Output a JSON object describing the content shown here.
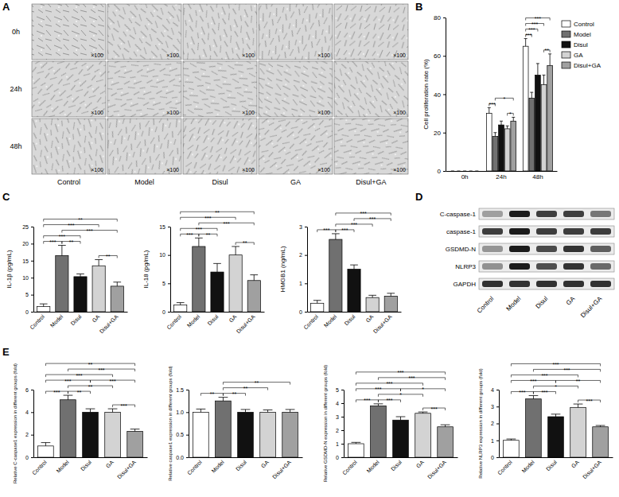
{
  "panel_labels": [
    "A",
    "B",
    "C",
    "D",
    "E"
  ],
  "cell_images": {
    "rows": [
      "0h",
      "24h",
      "48h"
    ],
    "columns": [
      "Control",
      "Model",
      "Disul",
      "GA",
      "Disul+GA"
    ],
    "magnification": "×100"
  },
  "western_blot": {
    "proteins": [
      "C-caspase-1",
      "caspase-1",
      "GSDMD-N",
      "NLRP3",
      "GAPDH"
    ],
    "lanes": [
      "Control",
      "Model",
      "Disul",
      "GA",
      "Disul+GA"
    ]
  },
  "chart_data": [
    {
      "type": "bar",
      "ylabel": "Cell proliferation rate (%)",
      "categories": [
        "0h",
        "24h",
        "48h"
      ],
      "series": [
        {
          "name": "Control",
          "color": "#ffffff",
          "values": [
            0,
            30,
            65
          ],
          "errors": [
            0,
            3,
            4
          ]
        },
        {
          "name": "Model",
          "color": "#707070",
          "values": [
            0,
            18,
            38
          ],
          "errors": [
            0,
            2,
            3
          ]
        },
        {
          "name": "Disul",
          "color": "#111111",
          "values": [
            0,
            24,
            50
          ],
          "errors": [
            0,
            2,
            6
          ]
        },
        {
          "name": "GA",
          "color": "#d3d3d3",
          "values": [
            0,
            22,
            45
          ],
          "errors": [
            0,
            1.5,
            5
          ]
        },
        {
          "name": "Disul+GA",
          "color": "#a0a0a0",
          "values": [
            0,
            26,
            55
          ],
          "errors": [
            0,
            2,
            6
          ]
        }
      ],
      "ylim": [
        0,
        80
      ],
      "yticks": [
        0,
        20,
        40,
        60,
        80
      ],
      "legend": "right",
      "annotations": [
        {
          "text": "***",
          "at": "24h",
          "between": [
            "Control",
            "Model"
          ]
        },
        {
          "text": "*",
          "at": "24h",
          "between": [
            "GA",
            "Disul+GA"
          ]
        },
        {
          "text": "*",
          "at": "24h",
          "between": [
            "Model",
            "Disul+GA"
          ]
        },
        {
          "text": "***",
          "at": "48h",
          "between": [
            "Control",
            "Model"
          ]
        },
        {
          "text": "**",
          "at": "48h",
          "between": [
            "GA",
            "Disul+GA"
          ]
        },
        {
          "text": "***",
          "at": "48h",
          "between": [
            "Control",
            "Disul"
          ]
        },
        {
          "text": "***",
          "at": "48h",
          "between": [
            "Control",
            "GA"
          ]
        },
        {
          "text": "***",
          "at": "48h",
          "between": [
            "Control",
            "Disul+GA"
          ]
        }
      ]
    },
    {
      "type": "bar",
      "ylabel": "IL-1β (pg/mL)",
      "categories": [
        "Control",
        "Model",
        "Disul",
        "GA",
        "Disul+GA"
      ],
      "values": [
        1.5,
        16.5,
        10.3,
        13.5,
        7.5
      ],
      "errors": [
        0.8,
        3,
        0.8,
        1.8,
        1.2
      ],
      "colors": [
        "#ffffff",
        "#707070",
        "#111111",
        "#d3d3d3",
        "#a0a0a0"
      ],
      "ylim": [
        0,
        25
      ],
      "yticks": [
        0,
        5,
        10,
        15,
        20,
        25
      ],
      "annotations": [
        {
          "text": "***",
          "between": [
            "Control",
            "Model"
          ]
        },
        {
          "text": "**",
          "between": [
            "Model",
            "Disul"
          ]
        },
        {
          "text": "**",
          "between": [
            "GA",
            "Disul+GA"
          ]
        },
        {
          "text": "***",
          "between": [
            "Control",
            "Disul"
          ]
        },
        {
          "text": "***",
          "between": [
            "Model",
            "Disul+GA"
          ]
        },
        {
          "text": "***",
          "between": [
            "Control",
            "GA"
          ]
        },
        {
          "text": "**",
          "between": [
            "Control",
            "Disul+GA"
          ]
        }
      ]
    },
    {
      "type": "bar",
      "ylabel": "IL-18 (pg/mL)",
      "categories": [
        "Control",
        "Model",
        "Disul",
        "GA",
        "Disul+GA"
      ],
      "values": [
        1.2,
        11.5,
        7,
        10,
        5.5
      ],
      "errors": [
        0.4,
        1.5,
        1.5,
        1.5,
        1
      ],
      "colors": [
        "#ffffff",
        "#707070",
        "#111111",
        "#d3d3d3",
        "#a0a0a0"
      ],
      "ylim": [
        0,
        15
      ],
      "yticks": [
        0,
        5,
        10,
        15
      ],
      "annotations": [
        {
          "text": "***",
          "between": [
            "Control",
            "Model"
          ]
        },
        {
          "text": "**",
          "between": [
            "Model",
            "Disul"
          ]
        },
        {
          "text": "**",
          "between": [
            "GA",
            "Disul+GA"
          ]
        },
        {
          "text": "***",
          "between": [
            "Control",
            "Disul"
          ]
        },
        {
          "text": "***",
          "between": [
            "Model",
            "Disul+GA"
          ]
        },
        {
          "text": "***",
          "between": [
            "Control",
            "GA"
          ]
        },
        {
          "text": "**",
          "between": [
            "Control",
            "Disul+GA"
          ]
        }
      ]
    },
    {
      "type": "bar",
      "ylabel": "HMGB1 (ng/mL)",
      "categories": [
        "Control",
        "Model",
        "Disul",
        "GA",
        "Disul+GA"
      ],
      "values": [
        0.3,
        2.55,
        1.5,
        0.5,
        0.55
      ],
      "errors": [
        0.1,
        0.2,
        0.15,
        0.08,
        0.1
      ],
      "colors": [
        "#ffffff",
        "#707070",
        "#111111",
        "#d3d3d3",
        "#a0a0a0"
      ],
      "ylim": [
        0,
        3
      ],
      "yticks": [
        0,
        1,
        2,
        3
      ],
      "annotations": [
        {
          "text": "***",
          "between": [
            "Control",
            "Model"
          ]
        },
        {
          "text": "***",
          "between": [
            "Model",
            "Disul"
          ]
        },
        {
          "text": "***",
          "between": [
            "Model",
            "GA"
          ]
        },
        {
          "text": "***",
          "between": [
            "Disul",
            "Disul+GA"
          ]
        },
        {
          "text": "***",
          "between": [
            "Model",
            "Disul+GA"
          ]
        }
      ]
    },
    {
      "type": "bar",
      "ylabel": "Relative C-caspase1 expression in different groups (fold)",
      "categories": [
        "Control",
        "Model",
        "Disul",
        "GA",
        "Disul+GA"
      ],
      "values": [
        1,
        5.1,
        4,
        4,
        2.3
      ],
      "errors": [
        0.3,
        0.4,
        0.3,
        0.3,
        0.2
      ],
      "colors": [
        "#ffffff",
        "#707070",
        "#111111",
        "#d3d3d3",
        "#a0a0a0"
      ],
      "ylim": [
        0,
        6
      ],
      "yticks": [
        0,
        2,
        4,
        6
      ],
      "annotations": [
        {
          "text": "***",
          "between": [
            "Control",
            "Model"
          ]
        },
        {
          "text": "**",
          "between": [
            "Model",
            "Disul"
          ]
        },
        {
          "text": "***",
          "between": [
            "GA",
            "Disul+GA"
          ]
        },
        {
          "text": "**",
          "between": [
            "Model",
            "GA"
          ]
        },
        {
          "text": "***",
          "between": [
            "Disul",
            "Disul+GA"
          ]
        },
        {
          "text": "***",
          "between": [
            "Control",
            "Disul"
          ]
        },
        {
          "text": "***",
          "between": [
            "Control",
            "GA"
          ]
        },
        {
          "text": "***",
          "between": [
            "Model",
            "Disul+GA"
          ]
        },
        {
          "text": "**",
          "between": [
            "Control",
            "Disul+GA"
          ]
        }
      ]
    },
    {
      "type": "bar",
      "ylabel": "Relative caspase1 expression in different groups (fold)",
      "categories": [
        "Control",
        "Model",
        "Disul",
        "GA",
        "Disul+GA"
      ],
      "values": [
        1,
        1.25,
        1,
        1,
        1
      ],
      "errors": [
        0.07,
        0.08,
        0.06,
        0.05,
        0.06
      ],
      "colors": [
        "#ffffff",
        "#707070",
        "#111111",
        "#d3d3d3",
        "#a0a0a0"
      ],
      "ylim": [
        0,
        1.5
      ],
      "yticks": [
        {
          "value": 0,
          "label": "0.0"
        },
        {
          "value": 0.5,
          "label": "0.5"
        },
        {
          "value": 1,
          "label": "1.0"
        },
        {
          "value": 1.5,
          "label": "1.5"
        }
      ],
      "annotations": [
        {
          "text": "**",
          "between": [
            "Control",
            "Model"
          ]
        },
        {
          "text": "**",
          "between": [
            "Model",
            "Disul"
          ]
        },
        {
          "text": "**",
          "between": [
            "Model",
            "GA"
          ]
        },
        {
          "text": "**",
          "between": [
            "Model",
            "Disul+GA"
          ]
        }
      ]
    },
    {
      "type": "bar",
      "ylabel": "Relative GSDMD-N expression in different groups (fold)",
      "categories": [
        "Control",
        "Model",
        "Disul",
        "GA",
        "Disul+GA"
      ],
      "values": [
        1,
        3.8,
        2.75,
        3.25,
        2.25
      ],
      "errors": [
        0.1,
        0.15,
        0.25,
        0.1,
        0.15
      ],
      "colors": [
        "#ffffff",
        "#707070",
        "#111111",
        "#d3d3d3",
        "#a0a0a0"
      ],
      "ylim": [
        0,
        5
      ],
      "yticks": [
        0,
        1,
        2,
        3,
        4,
        5
      ],
      "annotations": [
        {
          "text": "***",
          "between": [
            "Control",
            "Model"
          ]
        },
        {
          "text": "***",
          "between": [
            "Model",
            "Disul"
          ]
        },
        {
          "text": "***",
          "between": [
            "GA",
            "Disul+GA"
          ]
        },
        {
          "text": "*",
          "between": [
            "Model",
            "GA"
          ]
        },
        {
          "text": "*",
          "between": [
            "Disul",
            "Disul+GA"
          ]
        },
        {
          "text": "***",
          "between": [
            "Control",
            "Disul"
          ]
        },
        {
          "text": "***",
          "between": [
            "Control",
            "GA"
          ]
        },
        {
          "text": "***",
          "between": [
            "Model",
            "Disul+GA"
          ]
        },
        {
          "text": "***",
          "between": [
            "Control",
            "Disul+GA"
          ]
        }
      ]
    },
    {
      "type": "bar",
      "ylabel": "Relative NLRP3 expression in different groups (fold)",
      "categories": [
        "Control",
        "Model",
        "Disul",
        "GA",
        "Disul+GA"
      ],
      "values": [
        1,
        3.45,
        2.4,
        2.95,
        1.8
      ],
      "errors": [
        0.08,
        0.2,
        0.15,
        0.2,
        0.08
      ],
      "colors": [
        "#ffffff",
        "#707070",
        "#111111",
        "#d3d3d3",
        "#a0a0a0"
      ],
      "ylim": [
        0,
        4
      ],
      "yticks": [
        0,
        1,
        2,
        3,
        4
      ],
      "annotations": [
        {
          "text": "***",
          "between": [
            "Control",
            "Model"
          ]
        },
        {
          "text": "***",
          "between": [
            "Model",
            "Disul"
          ]
        },
        {
          "text": "***",
          "between": [
            "GA",
            "Disul+GA"
          ]
        },
        {
          "text": "*",
          "between": [
            "Model",
            "GA"
          ]
        },
        {
          "text": "**",
          "between": [
            "Disul",
            "Disul+GA"
          ]
        },
        {
          "text": "***",
          "between": [
            "Control",
            "Disul"
          ]
        },
        {
          "text": "***",
          "between": [
            "Control",
            "GA"
          ]
        },
        {
          "text": "***",
          "between": [
            "Model",
            "Disul+GA"
          ]
        },
        {
          "text": "***",
          "between": [
            "Control",
            "Disul+GA"
          ]
        }
      ]
    }
  ]
}
